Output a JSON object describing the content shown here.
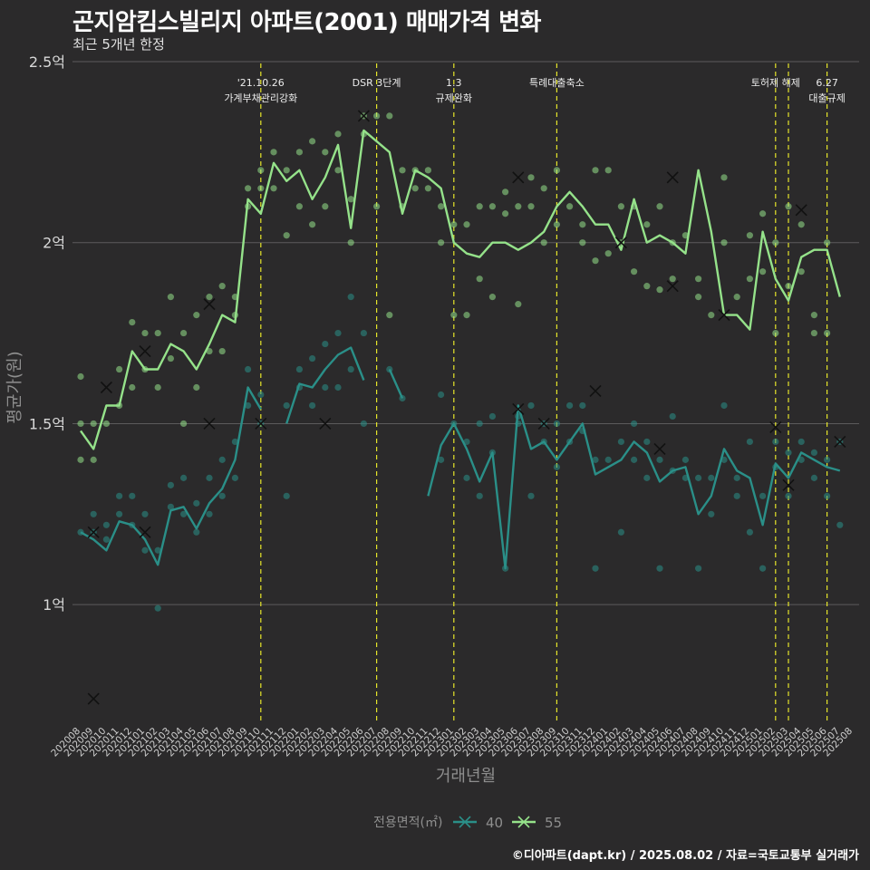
{
  "chart_data": {
    "type": "line",
    "title": "곤지암킴스빌리지 아파트(2001) 매매가격 변화",
    "subtitle": "최근 5개년 한정",
    "caption": "©디아파트(dapt.kr) / 2025.08.02 / 자료=국토교통부 실거래가",
    "xlabel": "거래년월",
    "ylabel": "평균가(원)",
    "y_ticks": [
      1.0,
      1.5,
      2.0,
      2.5
    ],
    "y_tick_labels": [
      "1억",
      "1.5억",
      "2억",
      "2.5억"
    ],
    "ylim": [
      0.68,
      2.52
    ],
    "grid": true,
    "legend_title": "전용면적(㎡)",
    "legend_position": "bottom",
    "months": [
      "202008",
      "202009",
      "202010",
      "202011",
      "202012",
      "202101",
      "202102",
      "202103",
      "202104",
      "202105",
      "202106",
      "202107",
      "202108",
      "202109",
      "202110",
      "202111",
      "202112",
      "202201",
      "202202",
      "202203",
      "202204",
      "202205",
      "202206",
      "202207",
      "202208",
      "202209",
      "202210",
      "202211",
      "202212",
      "202301",
      "202302",
      "202303",
      "202304",
      "202305",
      "202306",
      "202307",
      "202308",
      "202309",
      "202310",
      "202311",
      "202312",
      "202401",
      "202402",
      "202403",
      "202404",
      "202405",
      "202406",
      "202407",
      "202408",
      "202409",
      "202410",
      "202411",
      "202412",
      "202501",
      "202502",
      "202503",
      "202504",
      "202505",
      "202506",
      "202507",
      "202508"
    ],
    "x_tick_labels": [
      "202008",
      "202009",
      "202010",
      "202011",
      "202012",
      "202101",
      "202102",
      "202103",
      "202104",
      "202105",
      "202106",
      "202107",
      "202108",
      "202109",
      "202110",
      "202111",
      "202112",
      "202201",
      "202202",
      "202203",
      "202204",
      "202205",
      "202206",
      "202207",
      "202208",
      "202209",
      "202210",
      "202211",
      "202212",
      "202301",
      "202302",
      "202303",
      "202304",
      "202305",
      "202306",
      "202307",
      "202308",
      "202309",
      "202310",
      "202311",
      "202312",
      "202401",
      "202402",
      "202403",
      "202404",
      "202405",
      "202406",
      "202407",
      "202408",
      "202409",
      "202410",
      "202411",
      "202412",
      "202501",
      "202502",
      "202503",
      "202504",
      "202505",
      "202506",
      "202507",
      "202508"
    ],
    "series": [
      {
        "name": "40",
        "color": "#2a8f88",
        "values": [
          1.2,
          1.18,
          1.15,
          1.23,
          1.22,
          1.18,
          1.11,
          1.26,
          1.27,
          1.21,
          1.28,
          1.32,
          1.4,
          1.6,
          1.54,
          null,
          1.5,
          1.61,
          1.6,
          1.65,
          1.69,
          1.71,
          1.62,
          null,
          1.65,
          1.57,
          null,
          1.3,
          1.44,
          1.5,
          1.43,
          1.34,
          1.42,
          1.1,
          1.55,
          1.43,
          1.45,
          1.4,
          1.45,
          1.5,
          1.36,
          1.38,
          1.4,
          1.45,
          1.42,
          1.34,
          1.37,
          1.38,
          1.25,
          1.3,
          1.43,
          1.37,
          1.35,
          1.22,
          1.39,
          1.35,
          1.42,
          1.4,
          1.38,
          1.37,
          null
        ],
        "points": [
          [
            0,
            1.2
          ],
          [
            1,
            1.2
          ],
          [
            1,
            1.25
          ],
          [
            2,
            1.18
          ],
          [
            2,
            1.22
          ],
          [
            3,
            1.25
          ],
          [
            3,
            1.3
          ],
          [
            4,
            1.22
          ],
          [
            4,
            1.3
          ],
          [
            5,
            1.15
          ],
          [
            5,
            1.25
          ],
          [
            6,
            0.99
          ],
          [
            6,
            1.15
          ],
          [
            7,
            1.27
          ],
          [
            7,
            1.33
          ],
          [
            8,
            1.25
          ],
          [
            8,
            1.35
          ],
          [
            9,
            1.2
          ],
          [
            9,
            1.28
          ],
          [
            10,
            1.25
          ],
          [
            10,
            1.35
          ],
          [
            11,
            1.3
          ],
          [
            11,
            1.4
          ],
          [
            12,
            1.35
          ],
          [
            12,
            1.45
          ],
          [
            13,
            1.55
          ],
          [
            13,
            1.65
          ],
          [
            14,
            1.5
          ],
          [
            14,
            1.58
          ],
          [
            16,
            1.3
          ],
          [
            16,
            1.55
          ],
          [
            17,
            1.6
          ],
          [
            17,
            1.65
          ],
          [
            18,
            1.55
          ],
          [
            18,
            1.68
          ],
          [
            19,
            1.6
          ],
          [
            19,
            1.72
          ],
          [
            20,
            1.6
          ],
          [
            20,
            1.75
          ],
          [
            21,
            1.65
          ],
          [
            21,
            1.85
          ],
          [
            22,
            1.5
          ],
          [
            22,
            1.75
          ],
          [
            24,
            1.65
          ],
          [
            25,
            1.57
          ],
          [
            28,
            1.4
          ],
          [
            28,
            1.58
          ],
          [
            29,
            1.5
          ],
          [
            30,
            1.35
          ],
          [
            30,
            1.45
          ],
          [
            31,
            1.3
          ],
          [
            31,
            1.5
          ],
          [
            32,
            1.42
          ],
          [
            32,
            1.52
          ],
          [
            33,
            1.1
          ],
          [
            34,
            1.5
          ],
          [
            34,
            1.52
          ],
          [
            35,
            1.3
          ],
          [
            35,
            1.55
          ],
          [
            36,
            1.45
          ],
          [
            36,
            1.5
          ],
          [
            37,
            1.38
          ],
          [
            37,
            1.5
          ],
          [
            38,
            1.45
          ],
          [
            38,
            1.55
          ],
          [
            39,
            1.48
          ],
          [
            39,
            1.55
          ],
          [
            40,
            1.1
          ],
          [
            40,
            1.4
          ],
          [
            41,
            1.4
          ],
          [
            42,
            1.2
          ],
          [
            42,
            1.45
          ],
          [
            43,
            1.4
          ],
          [
            43,
            1.5
          ],
          [
            44,
            1.35
          ],
          [
            44,
            1.45
          ],
          [
            45,
            1.1
          ],
          [
            45,
            1.4
          ],
          [
            46,
            1.37
          ],
          [
            46,
            1.52
          ],
          [
            47,
            1.35
          ],
          [
            47,
            1.4
          ],
          [
            48,
            1.1
          ],
          [
            48,
            1.35
          ],
          [
            49,
            1.25
          ],
          [
            49,
            1.35
          ],
          [
            50,
            1.4
          ],
          [
            50,
            1.55
          ],
          [
            51,
            1.3
          ],
          [
            51,
            1.35
          ],
          [
            52,
            1.2
          ],
          [
            52,
            1.45
          ],
          [
            53,
            1.1
          ],
          [
            53,
            1.3
          ],
          [
            54,
            1.38
          ],
          [
            54,
            1.45
          ],
          [
            55,
            1.3
          ],
          [
            55,
            1.42
          ],
          [
            56,
            1.4
          ],
          [
            56,
            1.45
          ],
          [
            57,
            1.35
          ],
          [
            57,
            1.42
          ],
          [
            58,
            1.3
          ],
          [
            58,
            1.4
          ],
          [
            59,
            1.22
          ],
          [
            59,
            1.45
          ]
        ],
        "markers": [
          [
            1,
            0.74
          ],
          [
            1,
            1.2
          ],
          [
            5,
            1.2
          ],
          [
            10,
            1.5
          ],
          [
            14,
            1.5
          ],
          [
            19,
            1.5
          ],
          [
            34,
            1.54
          ],
          [
            36,
            1.5
          ],
          [
            40,
            1.59
          ],
          [
            45,
            1.43
          ],
          [
            54,
            1.49
          ],
          [
            55,
            1.33
          ],
          [
            59,
            1.45
          ]
        ]
      },
      {
        "name": "55",
        "color": "#95e28a",
        "values": [
          1.48,
          1.43,
          1.55,
          1.55,
          1.7,
          1.65,
          1.65,
          1.72,
          1.7,
          1.65,
          1.72,
          1.8,
          1.78,
          2.12,
          2.08,
          2.22,
          2.17,
          2.2,
          2.12,
          2.18,
          2.27,
          2.04,
          2.31,
          2.28,
          2.25,
          2.08,
          2.2,
          2.18,
          2.15,
          2.0,
          1.97,
          1.96,
          2.0,
          2.0,
          1.98,
          2.0,
          2.03,
          2.1,
          2.14,
          2.1,
          2.05,
          2.05,
          1.98,
          2.12,
          2.0,
          2.02,
          2.0,
          1.97,
          2.2,
          2.03,
          1.8,
          1.8,
          1.76,
          2.03,
          1.9,
          1.84,
          1.96,
          1.98,
          1.98,
          1.85,
          null
        ],
        "points": [
          [
            0,
            1.4
          ],
          [
            0,
            1.5
          ],
          [
            0,
            1.63
          ],
          [
            1,
            1.4
          ],
          [
            1,
            1.5
          ],
          [
            2,
            1.5
          ],
          [
            3,
            1.55
          ],
          [
            3,
            1.65
          ],
          [
            4,
            1.6
          ],
          [
            4,
            1.78
          ],
          [
            5,
            1.65
          ],
          [
            5,
            1.75
          ],
          [
            6,
            1.6
          ],
          [
            6,
            1.75
          ],
          [
            7,
            1.68
          ],
          [
            7,
            1.85
          ],
          [
            8,
            1.5
          ],
          [
            8,
            1.75
          ],
          [
            9,
            1.6
          ],
          [
            9,
            1.8
          ],
          [
            10,
            1.7
          ],
          [
            10,
            1.85
          ],
          [
            11,
            1.7
          ],
          [
            11,
            1.88
          ],
          [
            12,
            1.8
          ],
          [
            12,
            1.85
          ],
          [
            13,
            2.1
          ],
          [
            13,
            2.15
          ],
          [
            14,
            2.15
          ],
          [
            14,
            2.2
          ],
          [
            15,
            2.15
          ],
          [
            15,
            2.25
          ],
          [
            16,
            2.02
          ],
          [
            16,
            2.2
          ],
          [
            17,
            2.1
          ],
          [
            17,
            2.25
          ],
          [
            18,
            2.05
          ],
          [
            18,
            2.28
          ],
          [
            19,
            2.1
          ],
          [
            19,
            2.25
          ],
          [
            20,
            2.2
          ],
          [
            20,
            2.3
          ],
          [
            21,
            2.0
          ],
          [
            21,
            2.12
          ],
          [
            22,
            2.3
          ],
          [
            22,
            2.35
          ],
          [
            23,
            2.1
          ],
          [
            23,
            2.35
          ],
          [
            24,
            1.8
          ],
          [
            24,
            2.35
          ],
          [
            25,
            2.1
          ],
          [
            25,
            2.2
          ],
          [
            26,
            2.15
          ],
          [
            26,
            2.2
          ],
          [
            27,
            2.15
          ],
          [
            27,
            2.2
          ],
          [
            28,
            2.0
          ],
          [
            28,
            2.1
          ],
          [
            29,
            1.8
          ],
          [
            29,
            2.05
          ],
          [
            30,
            1.8
          ],
          [
            30,
            2.05
          ],
          [
            31,
            1.9
          ],
          [
            31,
            2.1
          ],
          [
            32,
            1.85
          ],
          [
            32,
            2.1
          ],
          [
            33,
            2.08
          ],
          [
            33,
            2.14
          ],
          [
            34,
            1.83
          ],
          [
            34,
            2.1
          ],
          [
            35,
            2.1
          ],
          [
            35,
            2.18
          ],
          [
            36,
            2.0
          ],
          [
            36,
            2.15
          ],
          [
            37,
            2.05
          ],
          [
            37,
            2.2
          ],
          [
            38,
            2.1
          ],
          [
            39,
            2.0
          ],
          [
            39,
            2.05
          ],
          [
            40,
            1.95
          ],
          [
            40,
            2.2
          ],
          [
            41,
            1.97
          ],
          [
            41,
            2.2
          ],
          [
            42,
            2.0
          ],
          [
            42,
            2.1
          ],
          [
            43,
            1.92
          ],
          [
            43,
            2.1
          ],
          [
            44,
            1.88
          ],
          [
            44,
            2.05
          ],
          [
            45,
            1.87
          ],
          [
            45,
            2.1
          ],
          [
            46,
            1.9
          ],
          [
            46,
            2.0
          ],
          [
            47,
            2.02
          ],
          [
            48,
            1.85
          ],
          [
            48,
            1.9
          ],
          [
            49,
            1.8
          ],
          [
            50,
            2.18
          ],
          [
            50,
            2.0
          ],
          [
            51,
            1.85
          ],
          [
            52,
            1.9
          ],
          [
            52,
            2.02
          ],
          [
            53,
            1.92
          ],
          [
            53,
            2.08
          ],
          [
            54,
            1.75
          ],
          [
            54,
            2.0
          ],
          [
            55,
            1.88
          ],
          [
            55,
            2.1
          ],
          [
            56,
            1.92
          ],
          [
            56,
            2.05
          ],
          [
            57,
            1.75
          ],
          [
            57,
            1.8
          ],
          [
            58,
            1.75
          ],
          [
            58,
            2.0
          ]
        ],
        "markers": [
          [
            2,
            1.6
          ],
          [
            5,
            1.7
          ],
          [
            10,
            1.83
          ],
          [
            22,
            2.35
          ],
          [
            34,
            2.18
          ],
          [
            42,
            2.0
          ],
          [
            46,
            2.18
          ],
          [
            46,
            1.88
          ],
          [
            50,
            1.8
          ],
          [
            56,
            2.09
          ]
        ]
      }
    ],
    "annotations": [
      {
        "index": 14.0,
        "lines": [
          "'21.10.26",
          "가계부채관리강화"
        ]
      },
      {
        "index": 23.0,
        "lines": [
          "DSR 3단계"
        ]
      },
      {
        "index": 29.0,
        "lines": [
          "1.3",
          "규제완화"
        ]
      },
      {
        "index": 37.0,
        "lines": [
          "특례대출축소"
        ]
      },
      {
        "index": 54.0,
        "lines": [
          "토허제 해제"
        ]
      },
      {
        "index": 55.0,
        "lines": []
      },
      {
        "index": 58.0,
        "lines": [
          "6.27",
          "대출규제"
        ]
      }
    ]
  }
}
